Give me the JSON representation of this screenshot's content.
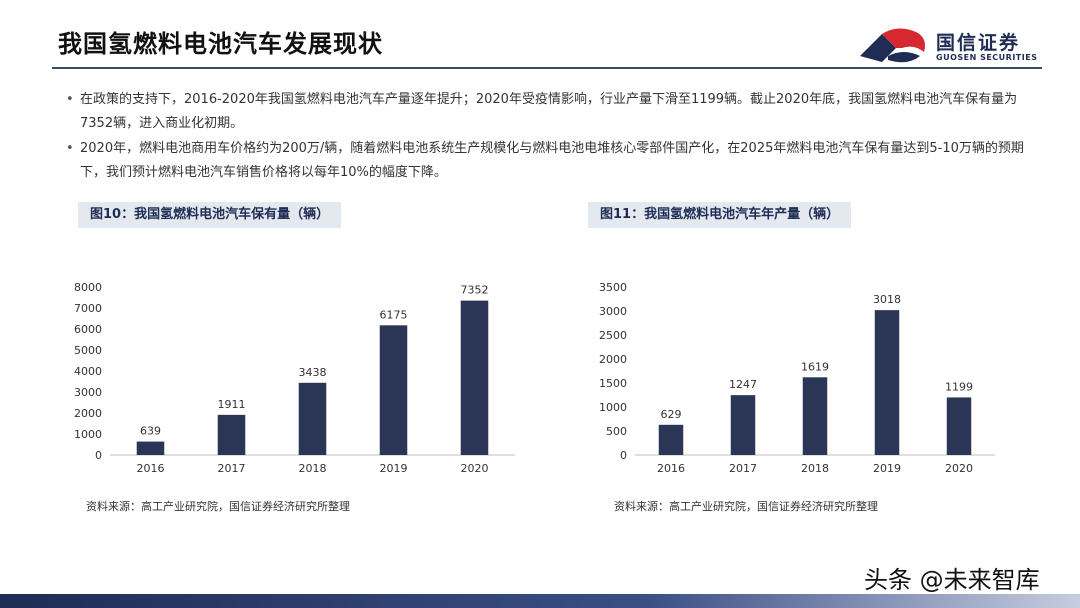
{
  "header": {
    "title": "我国氢燃料电池汽车发展现状",
    "logo_cn": "国信证券",
    "logo_en": "GUOSEN SECURITIES"
  },
  "bullets": [
    "在政策的支持下，2016-2020年我国氢燃料电池汽车产量逐年提升；2020年受疫情影响，行业产量下滑至1199辆。截止2020年底，我国氢燃料电池汽车保有量为7352辆，进入商业化初期。",
    "2020年，燃料电池商用车价格约为200万/辆，随着燃料电池系统生产规模化与燃料电池电堆核心零部件国产化，在2025年燃料电池汽车保有量达到5-10万辆的预期下，我们预计燃料电池汽车销售价格将以每年10%的幅度下降。"
  ],
  "chart_data": [
    {
      "type": "bar",
      "title": "图10：我国氢燃料电池汽车保有量（辆）",
      "categories": [
        "2016",
        "2017",
        "2018",
        "2019",
        "2020"
      ],
      "values": [
        639,
        1911,
        3438,
        6175,
        7352
      ],
      "ylim": [
        0,
        8000
      ],
      "yticks": [
        0,
        1000,
        2000,
        3000,
        4000,
        5000,
        6000,
        7000,
        8000
      ],
      "grid": false,
      "bar_color": "#2b3657",
      "source": "资料来源：高工产业研究院，国信证券经济研究所整理"
    },
    {
      "type": "bar",
      "title": "图11：我国氢燃料电池汽车年产量（辆）",
      "categories": [
        "2016",
        "2017",
        "2018",
        "2019",
        "2020"
      ],
      "values": [
        629,
        1247,
        1619,
        3018,
        1199
      ],
      "ylim": [
        0,
        3500
      ],
      "yticks": [
        0,
        500,
        1000,
        1500,
        2000,
        2500,
        3000,
        3500
      ],
      "grid": false,
      "bar_color": "#2b3657",
      "source": "资料来源：高工产业研究院，国信证券经济研究所整理"
    }
  ],
  "watermark": "头条 @未来智库",
  "colors": {
    "accent": "#1f2d55",
    "logo_red": "#d7282f",
    "bar": "#2b3657"
  }
}
